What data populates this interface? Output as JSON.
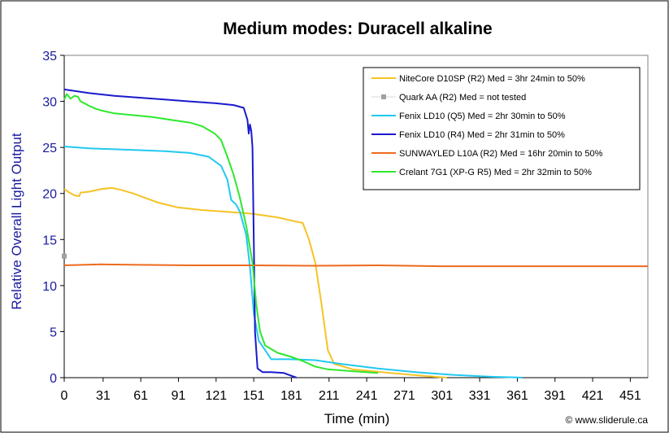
{
  "chart_data": {
    "type": "line",
    "title": "Medium modes: Duracell alkaline",
    "xlabel": "Time (min)",
    "ylabel": "Relative Overall Light Output",
    "xlim": [
      0,
      465
    ],
    "ylim": [
      0,
      35
    ],
    "xticks": [
      0,
      31,
      61,
      91,
      121,
      151,
      181,
      211,
      241,
      271,
      301,
      331,
      361,
      391,
      421,
      451
    ],
    "yticks": [
      0,
      5,
      10,
      15,
      20,
      25,
      30,
      35
    ],
    "grid": false,
    "legend_position": "top-right",
    "credit": "© www.sliderule.ca",
    "series": [
      {
        "name": "NiteCore D10SP (R2) Med = 3hr 24min to 50%",
        "color": "#f5c324",
        "marker": "none",
        "points": [
          [
            0,
            20.5
          ],
          [
            3,
            20.2
          ],
          [
            8,
            19.8
          ],
          [
            12,
            19.7
          ],
          [
            13,
            20.1
          ],
          [
            20,
            20.2
          ],
          [
            30,
            20.5
          ],
          [
            38,
            20.6
          ],
          [
            45,
            20.4
          ],
          [
            55,
            20.0
          ],
          [
            65,
            19.5
          ],
          [
            75,
            19.0
          ],
          [
            90,
            18.5
          ],
          [
            110,
            18.2
          ],
          [
            130,
            18.0
          ],
          [
            150,
            17.8
          ],
          [
            170,
            17.4
          ],
          [
            183,
            17.0
          ],
          [
            190,
            16.8
          ],
          [
            195,
            15.0
          ],
          [
            200,
            12.5
          ],
          [
            205,
            8.0
          ],
          [
            210,
            3.0
          ],
          [
            215,
            1.5
          ],
          [
            230,
            0.9
          ],
          [
            260,
            0.5
          ],
          [
            290,
            0.15
          ],
          [
            305,
            0.0
          ]
        ]
      },
      {
        "name": "Quark AA (R2) Med = not tested",
        "color": "#a0a0a0",
        "marker": "square",
        "points": [
          [
            0,
            13.2
          ]
        ]
      },
      {
        "name": "Fenix LD10 (Q5) Med = 2hr 30min to 50%",
        "color": "#22c8f0",
        "marker": "none",
        "points": [
          [
            0,
            25.1
          ],
          [
            20,
            24.9
          ],
          [
            40,
            24.8
          ],
          [
            60,
            24.7
          ],
          [
            80,
            24.6
          ],
          [
            100,
            24.4
          ],
          [
            115,
            24.0
          ],
          [
            125,
            23.0
          ],
          [
            130,
            21.5
          ],
          [
            133,
            19.3
          ],
          [
            137,
            18.8
          ],
          [
            140,
            18.0
          ],
          [
            145,
            15.5
          ],
          [
            148,
            12.0
          ],
          [
            151,
            7.0
          ],
          [
            155,
            4.0
          ],
          [
            160,
            3.0
          ],
          [
            165,
            2.0
          ],
          [
            180,
            2.0
          ],
          [
            200,
            1.9
          ],
          [
            220,
            1.5
          ],
          [
            250,
            1.0
          ],
          [
            280,
            0.6
          ],
          [
            310,
            0.3
          ],
          [
            340,
            0.1
          ],
          [
            365,
            0.0
          ]
        ]
      },
      {
        "name": "Fenix LD10 (R4) Med = 2hr 31min to 50%",
        "color": "#1a1acc",
        "marker": "none",
        "points": [
          [
            0,
            31.3
          ],
          [
            10,
            31.1
          ],
          [
            20,
            30.9
          ],
          [
            40,
            30.6
          ],
          [
            60,
            30.4
          ],
          [
            80,
            30.2
          ],
          [
            100,
            30.0
          ],
          [
            120,
            29.8
          ],
          [
            135,
            29.6
          ],
          [
            143,
            29.3
          ],
          [
            146,
            28.0
          ],
          [
            147,
            26.5
          ],
          [
            148,
            27.5
          ],
          [
            149,
            26.8
          ],
          [
            150,
            25.0
          ],
          [
            151,
            15.0
          ],
          [
            152,
            5.0
          ],
          [
            154,
            1.0
          ],
          [
            158,
            0.6
          ],
          [
            165,
            0.6
          ],
          [
            175,
            0.5
          ],
          [
            185,
            0.0
          ]
        ]
      },
      {
        "name": "SUNWAYLED L10A (R2) Med = 16hr 20min to 50%",
        "color": "#ee6a1e",
        "marker": "none",
        "points": [
          [
            0,
            12.2
          ],
          [
            30,
            12.3
          ],
          [
            60,
            12.25
          ],
          [
            100,
            12.2
          ],
          [
            150,
            12.2
          ],
          [
            200,
            12.15
          ],
          [
            250,
            12.2
          ],
          [
            300,
            12.1
          ],
          [
            350,
            12.1
          ],
          [
            400,
            12.1
          ],
          [
            465,
            12.1
          ]
        ]
      },
      {
        "name": "Crelant 7G1 (XP-G R5) Med = 2hr 32min to 50%",
        "color": "#2ee82e",
        "marker": "none",
        "points": [
          [
            0,
            30.2
          ],
          [
            2,
            30.8
          ],
          [
            5,
            30.3
          ],
          [
            8,
            30.6
          ],
          [
            11,
            30.5
          ],
          [
            13,
            30.0
          ],
          [
            16,
            29.8
          ],
          [
            20,
            29.5
          ],
          [
            25,
            29.2
          ],
          [
            30,
            29.0
          ],
          [
            40,
            28.7
          ],
          [
            55,
            28.5
          ],
          [
            70,
            28.3
          ],
          [
            85,
            28.0
          ],
          [
            100,
            27.7
          ],
          [
            110,
            27.3
          ],
          [
            120,
            26.5
          ],
          [
            125,
            25.8
          ],
          [
            130,
            24.0
          ],
          [
            135,
            22.0
          ],
          [
            140,
            19.5
          ],
          [
            145,
            16.5
          ],
          [
            150,
            12.5
          ],
          [
            153,
            8.0
          ],
          [
            156,
            5.0
          ],
          [
            160,
            3.5
          ],
          [
            170,
            2.7
          ],
          [
            180,
            2.3
          ],
          [
            190,
            1.8
          ],
          [
            200,
            1.2
          ],
          [
            210,
            0.9
          ],
          [
            230,
            0.7
          ],
          [
            250,
            0.5
          ]
        ]
      }
    ]
  }
}
